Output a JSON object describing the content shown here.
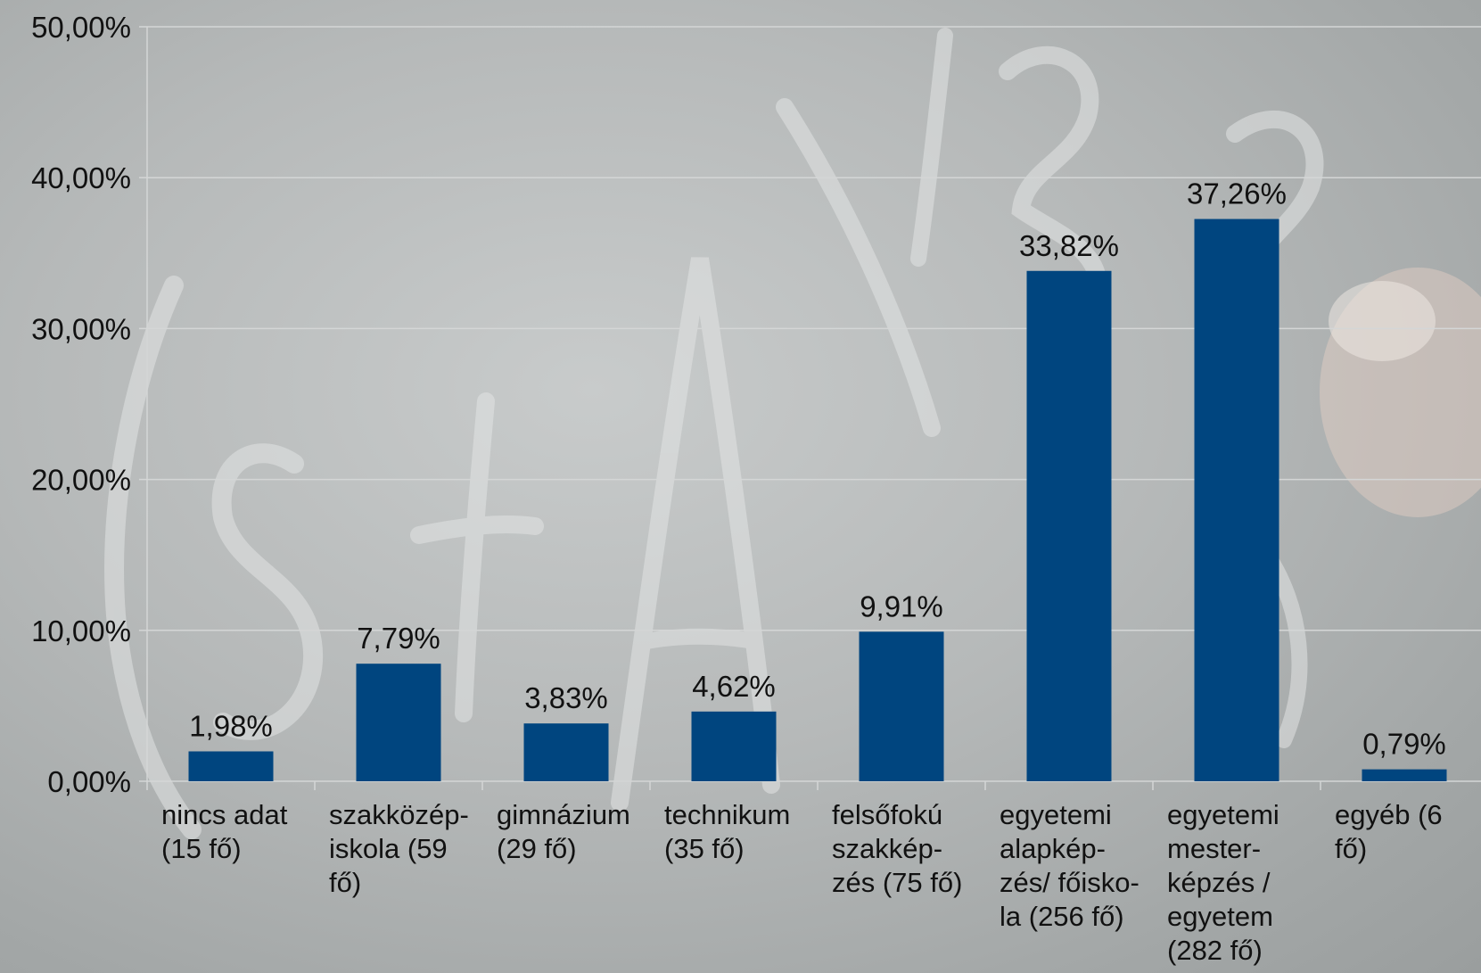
{
  "chart_data": {
    "type": "bar",
    "categories": [
      "nincs adat (15 fő)",
      "szakközép-iskola (59 fő)",
      "gimnázium (29 fő)",
      "technikum (35 fő)",
      "felsőfokú szakkép-zés (75 fő)",
      "egyetemi alapkép-zés/ főisko-la (256 fő)",
      "egyetemi mester-képzés / egyetem (282 fő)",
      "egyéb (6 fő)"
    ],
    "category_lines": [
      [
        "nincs adat",
        "(15 fő)"
      ],
      [
        "szakközép-",
        "iskola (59",
        "fő)"
      ],
      [
        "gimnázium",
        "(29 fő)"
      ],
      [
        "technikum",
        "(35 fő)"
      ],
      [
        "felsőfokú",
        "szakkép-",
        "zés (75 fő)"
      ],
      [
        "egyetemi",
        "alapkép-",
        "zés/ főisko-",
        "la (256 fő)"
      ],
      [
        "egyetemi",
        "mester-",
        "képzés /",
        "egyetem",
        "(282 fő)"
      ],
      [
        "egyéb (6",
        "fő)"
      ]
    ],
    "values": [
      1.98,
      7.79,
      3.83,
      4.62,
      9.91,
      33.82,
      37.26,
      0.79
    ],
    "data_labels": [
      "1,98%",
      "7,79%",
      "3,83%",
      "4,62%",
      "9,91%",
      "33,82%",
      "37,26%",
      "0,79%"
    ],
    "ylim": [
      0,
      50
    ],
    "yticks": [
      0,
      10,
      20,
      30,
      40,
      50
    ],
    "ytick_labels": [
      "0,00%",
      "10,00%",
      "20,00%",
      "30,00%",
      "40,00%",
      "50,00%"
    ],
    "title": "",
    "xlabel": "",
    "ylabel": "",
    "grid": true,
    "bar_color": "#00457f",
    "gridline_color": "#d4d6d6",
    "text_color": "#111111",
    "title_color": "#1f1fd0"
  }
}
